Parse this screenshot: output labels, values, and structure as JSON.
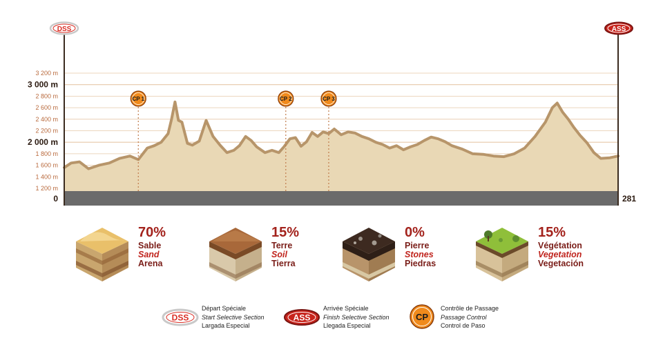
{
  "chart_data": {
    "type": "area",
    "x": [
      0,
      10,
      22,
      35,
      50,
      65,
      80,
      95,
      107,
      120,
      130,
      140,
      150,
      155,
      160,
      165,
      170,
      178,
      185,
      195,
      205,
      215,
      225,
      235,
      245,
      253,
      262,
      270,
      278,
      290,
      300,
      310,
      318,
      326,
      334,
      342,
      350,
      358,
      366,
      374,
      382,
      390,
      400,
      410,
      420,
      430,
      440,
      450,
      460,
      470,
      480,
      490,
      500,
      510,
      520,
      530,
      540,
      550,
      560,
      575,
      590,
      605,
      620,
      635,
      650,
      665,
      680,
      695,
      705,
      712,
      720,
      728,
      736,
      745,
      755,
      765,
      775,
      788,
      800
    ],
    "y": [
      1560,
      1640,
      1660,
      1540,
      1600,
      1640,
      1720,
      1760,
      1700,
      1900,
      1940,
      2000,
      2150,
      2400,
      2700,
      2380,
      2350,
      1980,
      1950,
      2020,
      2380,
      2100,
      1950,
      1820,
      1860,
      1940,
      2100,
      2030,
      1920,
      1820,
      1860,
      1820,
      1930,
      2060,
      2080,
      1930,
      2010,
      2170,
      2100,
      2180,
      2150,
      2230,
      2130,
      2180,
      2160,
      2100,
      2060,
      2000,
      1960,
      1900,
      1940,
      1870,
      1920,
      1960,
      2030,
      2090,
      2060,
      2010,
      1940,
      1880,
      1800,
      1790,
      1760,
      1750,
      1800,
      1900,
      2100,
      2350,
      2600,
      2680,
      2520,
      2400,
      2260,
      2120,
      1990,
      1820,
      1720,
      1730,
      1760
    ],
    "xlabel": "",
    "ylabel": "",
    "start_label": "0",
    "end_label": "281",
    "y_ticks": [
      {
        "value": 1200,
        "label": "1 200 m",
        "major": false
      },
      {
        "value": 1400,
        "label": "1 400 m",
        "major": false
      },
      {
        "value": 1600,
        "label": "1 600 m",
        "major": false
      },
      {
        "value": 1800,
        "label": "1 800 m",
        "major": false
      },
      {
        "value": 2000,
        "label": "2 000 m",
        "major": true
      },
      {
        "value": 2200,
        "label": "2 200 m",
        "major": false
      },
      {
        "value": 2400,
        "label": "2 400 m",
        "major": false
      },
      {
        "value": 2600,
        "label": "2 600 m",
        "major": false
      },
      {
        "value": 2800,
        "label": "2 800 m",
        "major": false
      },
      {
        "value": 3000,
        "label": "3 000 m",
        "major": true
      },
      {
        "value": 3200,
        "label": "3 200 m",
        "major": false
      }
    ],
    "checkpoints": [
      {
        "label": "CP 1",
        "x": 107
      },
      {
        "label": "CP 2",
        "x": 320
      },
      {
        "label": "CP 3",
        "x": 382
      }
    ],
    "grid": true,
    "colors": {
      "fill": "#e9d8b5",
      "line": "#b7956a",
      "base": "#6b6b6b",
      "grid": "#e6c8a8",
      "accent": "#d92b22",
      "cp": "#f08a1c"
    }
  },
  "markers": {
    "start": "DSS",
    "finish": "ASS"
  },
  "terrain": [
    {
      "pct": "70%",
      "fr": "Sable",
      "en": "Sand",
      "es": "Arena",
      "icon": "sand-block-icon"
    },
    {
      "pct": "15%",
      "fr": "Terre",
      "en": "Soil",
      "es": "Tierra",
      "icon": "soil-block-icon"
    },
    {
      "pct": "0%",
      "fr": "Pierre",
      "en": "Stones",
      "es": "Piedras",
      "icon": "stone-block-icon"
    },
    {
      "pct": "15%",
      "fr": "Végétation",
      "en": "Vegetation",
      "es": "Vegetación",
      "icon": "vegetation-block-icon"
    }
  ],
  "legend": {
    "dss": {
      "badge": "DSS",
      "fr": "Départ Spéciale",
      "en": "Start Selective Section",
      "es": "Largada Especial"
    },
    "ass": {
      "badge": "ASS",
      "fr": "Arrivée Spéciale",
      "en": "Finish Selective Section",
      "es": "Llegada Especial"
    },
    "cp": {
      "badge": "CP",
      "fr": "Contrôle de Passage",
      "en": "Passage Control",
      "es": "Control de Paso"
    }
  }
}
